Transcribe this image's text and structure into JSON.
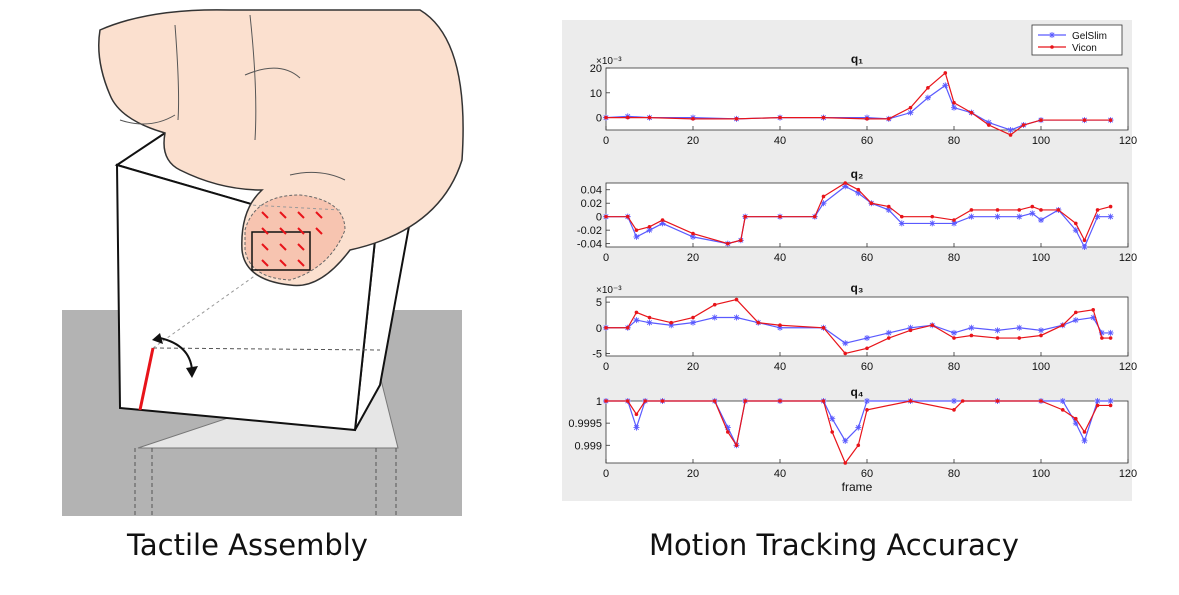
{
  "captions": {
    "left": "Tactile Assembly",
    "right": "Motion Tracking Accuracy"
  },
  "colors": {
    "gelslim": "#5a5aff",
    "vicon": "#e8141a",
    "panel_bg": "#ececec",
    "ground": "#b3b3b3",
    "skin": "#fbe0cf"
  },
  "icons": [
    "finger-illustration",
    "cube-illustration",
    "rotation-arrow-icon"
  ],
  "chart_data": [
    {
      "type": "line",
      "title": "q₁",
      "exponent": "×10⁻³",
      "xlabel": "",
      "xlim": [
        0,
        120
      ],
      "ylim": [
        -5,
        20
      ],
      "yticks": [
        0,
        10,
        20
      ],
      "ytick_labels": [
        "0",
        "10",
        "20"
      ],
      "xticks": [
        0,
        20,
        40,
        60,
        80,
        100,
        120
      ],
      "xtick_labels": [
        "0",
        "20",
        "40",
        "60",
        "80",
        "100",
        "120"
      ],
      "legend": {
        "position": "top-right",
        "entries": [
          "GelSlim",
          "Vicon"
        ]
      },
      "series": [
        {
          "name": "GelSlim",
          "marker": "asterisk",
          "points": [
            [
              0,
              0
            ],
            [
              5,
              0.5
            ],
            [
              10,
              0
            ],
            [
              20,
              0
            ],
            [
              30,
              -0.5
            ],
            [
              40,
              0
            ],
            [
              50,
              0
            ],
            [
              60,
              0
            ],
            [
              65,
              -0.5
            ],
            [
              70,
              2
            ],
            [
              74,
              8
            ],
            [
              78,
              13
            ],
            [
              80,
              4
            ],
            [
              84,
              2
            ],
            [
              88,
              -2
            ],
            [
              93,
              -5
            ],
            [
              96,
              -3
            ],
            [
              100,
              -1
            ],
            [
              110,
              -1
            ],
            [
              116,
              -1
            ]
          ]
        },
        {
          "name": "Vicon",
          "marker": "dot",
          "points": [
            [
              0,
              0
            ],
            [
              5,
              0
            ],
            [
              10,
              0
            ],
            [
              20,
              -0.5
            ],
            [
              30,
              -0.5
            ],
            [
              40,
              0
            ],
            [
              50,
              0
            ],
            [
              60,
              -0.5
            ],
            [
              65,
              -0.5
            ],
            [
              70,
              4
            ],
            [
              74,
              12
            ],
            [
              78,
              18
            ],
            [
              80,
              6
            ],
            [
              84,
              2
            ],
            [
              88,
              -3
            ],
            [
              93,
              -7
            ],
            [
              96,
              -3
            ],
            [
              100,
              -1
            ],
            [
              110,
              -1
            ],
            [
              116,
              -1
            ]
          ]
        }
      ]
    },
    {
      "type": "line",
      "title": "q₂",
      "xlabel": "",
      "xlim": [
        0,
        120
      ],
      "ylim": [
        -0.045,
        0.05
      ],
      "yticks": [
        -0.04,
        -0.02,
        0,
        0.02,
        0.04
      ],
      "ytick_labels": [
        "-0.04",
        "-0.02",
        "0",
        "0.02",
        "0.04"
      ],
      "xticks": [
        0,
        20,
        40,
        60,
        80,
        100,
        120
      ],
      "xtick_labels": [
        "0",
        "20",
        "40",
        "60",
        "80",
        "100",
        "120"
      ],
      "series": [
        {
          "name": "GelSlim",
          "marker": "asterisk",
          "points": [
            [
              0,
              0
            ],
            [
              5,
              0
            ],
            [
              7,
              -0.03
            ],
            [
              10,
              -0.02
            ],
            [
              13,
              -0.01
            ],
            [
              20,
              -0.03
            ],
            [
              28,
              -0.04
            ],
            [
              31,
              -0.035
            ],
            [
              32,
              0
            ],
            [
              40,
              0
            ],
            [
              48,
              0
            ],
            [
              50,
              0.02
            ],
            [
              55,
              0.045
            ],
            [
              58,
              0.035
            ],
            [
              61,
              0.02
            ],
            [
              65,
              0.01
            ],
            [
              68,
              -0.01
            ],
            [
              75,
              -0.01
            ],
            [
              80,
              -0.01
            ],
            [
              84,
              0
            ],
            [
              90,
              0
            ],
            [
              95,
              0
            ],
            [
              98,
              0.005
            ],
            [
              100,
              -0.005
            ],
            [
              104,
              0.01
            ],
            [
              108,
              -0.02
            ],
            [
              110,
              -0.045
            ],
            [
              113,
              0
            ],
            [
              116,
              0
            ]
          ]
        },
        {
          "name": "Vicon",
          "marker": "dot",
          "points": [
            [
              0,
              0
            ],
            [
              5,
              0
            ],
            [
              7,
              -0.02
            ],
            [
              10,
              -0.015
            ],
            [
              13,
              -0.005
            ],
            [
              20,
              -0.025
            ],
            [
              28,
              -0.04
            ],
            [
              31,
              -0.035
            ],
            [
              32,
              0
            ],
            [
              40,
              0
            ],
            [
              48,
              0
            ],
            [
              50,
              0.03
            ],
            [
              55,
              0.05
            ],
            [
              58,
              0.04
            ],
            [
              61,
              0.02
            ],
            [
              65,
              0.015
            ],
            [
              68,
              0
            ],
            [
              75,
              0
            ],
            [
              80,
              -0.005
            ],
            [
              84,
              0.01
            ],
            [
              90,
              0.01
            ],
            [
              95,
              0.01
            ],
            [
              98,
              0.015
            ],
            [
              100,
              0.01
            ],
            [
              104,
              0.01
            ],
            [
              108,
              -0.01
            ],
            [
              110,
              -0.035
            ],
            [
              113,
              0.01
            ],
            [
              116,
              0.015
            ]
          ]
        }
      ]
    },
    {
      "type": "line",
      "title": "q₃",
      "exponent": "×10⁻³",
      "xlabel": "",
      "xlim": [
        0,
        120
      ],
      "ylim": [
        -5.5,
        6
      ],
      "yticks": [
        -5,
        0,
        5
      ],
      "ytick_labels": [
        "-5",
        "0",
        "5"
      ],
      "xticks": [
        0,
        20,
        40,
        60,
        80,
        100,
        120
      ],
      "xtick_labels": [
        "0",
        "20",
        "40",
        "60",
        "80",
        "100",
        "120"
      ],
      "series": [
        {
          "name": "GelSlim",
          "marker": "asterisk",
          "points": [
            [
              0,
              0
            ],
            [
              5,
              0
            ],
            [
              7,
              1.5
            ],
            [
              10,
              1
            ],
            [
              15,
              0.5
            ],
            [
              20,
              1
            ],
            [
              25,
              2
            ],
            [
              30,
              2
            ],
            [
              35,
              1
            ],
            [
              40,
              0
            ],
            [
              50,
              0
            ],
            [
              55,
              -3
            ],
            [
              60,
              -2
            ],
            [
              65,
              -1
            ],
            [
              70,
              0
            ],
            [
              75,
              0.5
            ],
            [
              80,
              -1
            ],
            [
              84,
              0
            ],
            [
              90,
              -0.5
            ],
            [
              95,
              0
            ],
            [
              100,
              -0.5
            ],
            [
              105,
              0.5
            ],
            [
              108,
              1.5
            ],
            [
              112,
              2
            ],
            [
              114,
              -1
            ],
            [
              116,
              -1
            ]
          ]
        },
        {
          "name": "Vicon",
          "marker": "dot",
          "points": [
            [
              0,
              0
            ],
            [
              5,
              0
            ],
            [
              7,
              3
            ],
            [
              10,
              2
            ],
            [
              15,
              1
            ],
            [
              20,
              2
            ],
            [
              25,
              4.5
            ],
            [
              30,
              5.5
            ],
            [
              35,
              1
            ],
            [
              40,
              0.5
            ],
            [
              50,
              0
            ],
            [
              55,
              -5
            ],
            [
              60,
              -4
            ],
            [
              65,
              -2
            ],
            [
              70,
              -0.5
            ],
            [
              75,
              0.5
            ],
            [
              80,
              -2
            ],
            [
              84,
              -1.5
            ],
            [
              90,
              -2
            ],
            [
              95,
              -2
            ],
            [
              100,
              -1.5
            ],
            [
              105,
              0.5
            ],
            [
              108,
              3
            ],
            [
              112,
              3.5
            ],
            [
              114,
              -2
            ],
            [
              116,
              -2
            ]
          ]
        }
      ]
    },
    {
      "type": "line",
      "title": "q₄",
      "xlabel": "frame",
      "xlim": [
        0,
        120
      ],
      "ylim": [
        0.9986,
        1
      ],
      "yticks": [
        0.999,
        0.9995,
        1
      ],
      "ytick_labels": [
        "0.999",
        "0.9995",
        "1"
      ],
      "xticks": [
        0,
        20,
        40,
        60,
        80,
        100,
        120
      ],
      "xtick_labels": [
        "0",
        "20",
        "40",
        "60",
        "80",
        "100",
        "120"
      ],
      "series": [
        {
          "name": "GelSlim",
          "marker": "asterisk",
          "points": [
            [
              0,
              1
            ],
            [
              5,
              1
            ],
            [
              7,
              0.9994
            ],
            [
              9,
              1
            ],
            [
              13,
              1
            ],
            [
              25,
              1
            ],
            [
              28,
              0.9994
            ],
            [
              30,
              0.999
            ],
            [
              32,
              1
            ],
            [
              40,
              1
            ],
            [
              50,
              1
            ],
            [
              52,
              0.9996
            ],
            [
              55,
              0.9991
            ],
            [
              58,
              0.9994
            ],
            [
              60,
              1
            ],
            [
              70,
              1
            ],
            [
              80,
              1
            ],
            [
              90,
              1
            ],
            [
              100,
              1
            ],
            [
              105,
              1
            ],
            [
              108,
              0.9995
            ],
            [
              110,
              0.9991
            ],
            [
              113,
              1
            ],
            [
              116,
              1
            ]
          ]
        },
        {
          "name": "Vicon",
          "marker": "dot",
          "points": [
            [
              0,
              1
            ],
            [
              5,
              1
            ],
            [
              7,
              0.9997
            ],
            [
              9,
              1
            ],
            [
              13,
              1
            ],
            [
              25,
              1
            ],
            [
              28,
              0.9993
            ],
            [
              30,
              0.999
            ],
            [
              32,
              1
            ],
            [
              40,
              1
            ],
            [
              50,
              1
            ],
            [
              52,
              0.9993
            ],
            [
              55,
              0.9986
            ],
            [
              58,
              0.999
            ],
            [
              60,
              0.9998
            ],
            [
              70,
              1
            ],
            [
              80,
              0.9998
            ],
            [
              82,
              1
            ],
            [
              90,
              1
            ],
            [
              100,
              1
            ],
            [
              105,
              0.9998
            ],
            [
              108,
              0.9996
            ],
            [
              110,
              0.9993
            ],
            [
              113,
              0.9999
            ],
            [
              116,
              0.9999
            ]
          ]
        }
      ]
    }
  ]
}
